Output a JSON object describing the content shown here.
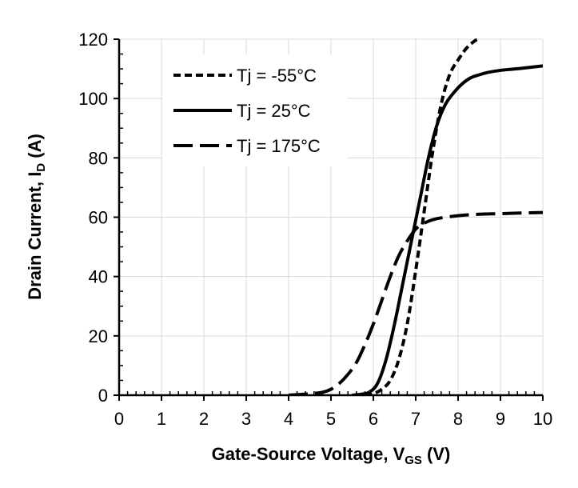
{
  "chart_data": {
    "type": "line",
    "xlabel": "Gate-Source Voltage, V",
    "xlabel_sub": "GS",
    "xlabel_suffix": " (V)",
    "ylabel": "Drain Current, I",
    "ylabel_sub": "D",
    "ylabel_suffix": " (A)",
    "xlim": [
      0,
      10
    ],
    "ylim": [
      0,
      120
    ],
    "xticks": [
      0,
      1,
      2,
      3,
      4,
      5,
      6,
      7,
      8,
      9,
      10
    ],
    "yticks": [
      0,
      20,
      40,
      60,
      80,
      100,
      120
    ],
    "grid": true,
    "legend_position": "top-left",
    "series": [
      {
        "name": "Tj = -55°C",
        "style": "dotted",
        "x": [
          5.8,
          6.0,
          6.2,
          6.4,
          6.6,
          6.8,
          7.0,
          7.2,
          7.4,
          7.6,
          7.8,
          8.0,
          8.2,
          8.4,
          8.5
        ],
        "y": [
          0,
          0.5,
          2,
          5,
          12,
          24,
          42,
          62,
          82,
          98,
          108,
          113,
          117,
          119.5,
          120
        ]
      },
      {
        "name": "Tj = 25°C",
        "style": "solid",
        "x": [
          5.5,
          5.7,
          5.9,
          6.1,
          6.3,
          6.5,
          6.7,
          6.9,
          7.1,
          7.3,
          7.5,
          7.7,
          7.9,
          8.1,
          8.3,
          8.5,
          8.7,
          9.0,
          9.5,
          10.0
        ],
        "y": [
          0,
          0.3,
          1,
          4,
          12,
          24,
          38,
          52,
          66,
          80,
          91,
          98,
          102,
          105,
          107,
          108,
          108.8,
          109.5,
          110.2,
          111
        ]
      },
      {
        "name": "Tj = 175°C",
        "style": "dashed",
        "x": [
          4.0,
          4.5,
          4.8,
          5.0,
          5.2,
          5.4,
          5.6,
          5.8,
          6.0,
          6.2,
          6.4,
          6.6,
          6.8,
          7.0,
          7.2,
          7.5,
          8.0,
          8.5,
          9.0,
          9.5,
          10.0
        ],
        "y": [
          0,
          0.5,
          1,
          2,
          4,
          7,
          11,
          17,
          24,
          32,
          40,
          47,
          52,
          56,
          58,
          59.5,
          60.5,
          61,
          61.2,
          61.4,
          61.6
        ]
      }
    ]
  }
}
